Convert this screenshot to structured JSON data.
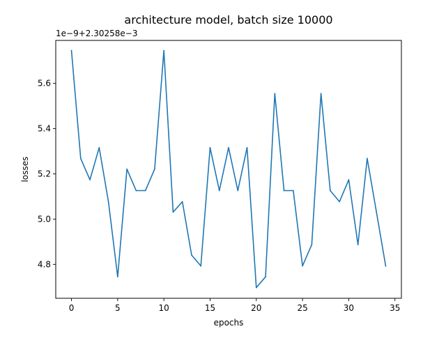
{
  "chart_data": {
    "type": "line",
    "title": "architecture model, batch size 10000",
    "xlabel": "epochs",
    "ylabel": "losses",
    "offset_text": "1e−9+2.30258e−3",
    "xlim": [
      -1.7,
      35.7
    ],
    "ylim": [
      4.65,
      5.79
    ],
    "xticks": [
      0,
      5,
      10,
      15,
      20,
      25,
      30,
      35
    ],
    "xtick_labels": [
      "0",
      "5",
      "10",
      "15",
      "20",
      "25",
      "30",
      "35"
    ],
    "yticks": [
      4.8,
      5.0,
      5.2,
      5.4,
      5.6
    ],
    "ytick_labels": [
      "4.8",
      "5.0",
      "5.2",
      "5.4",
      "5.6"
    ],
    "grid": false,
    "series": [
      {
        "color": "#1f77b4",
        "x": [
          0,
          1,
          2,
          3,
          4,
          5,
          6,
          7,
          8,
          9,
          10,
          11,
          12,
          13,
          14,
          15,
          16,
          17,
          18,
          19,
          20,
          21,
          22,
          23,
          24,
          25,
          26,
          27,
          28,
          29,
          30,
          31,
          32,
          33,
          34
        ],
        "y": [
          5.745,
          5.268,
          5.174,
          5.316,
          5.077,
          4.745,
          5.221,
          5.126,
          5.126,
          5.221,
          5.745,
          5.031,
          5.077,
          4.841,
          4.793,
          5.316,
          5.126,
          5.316,
          5.126,
          5.316,
          4.697,
          4.745,
          5.555,
          5.126,
          5.126,
          4.793,
          4.887,
          5.555,
          5.126,
          5.077,
          5.174,
          4.887,
          5.268,
          5.031,
          4.793
        ]
      }
    ]
  }
}
